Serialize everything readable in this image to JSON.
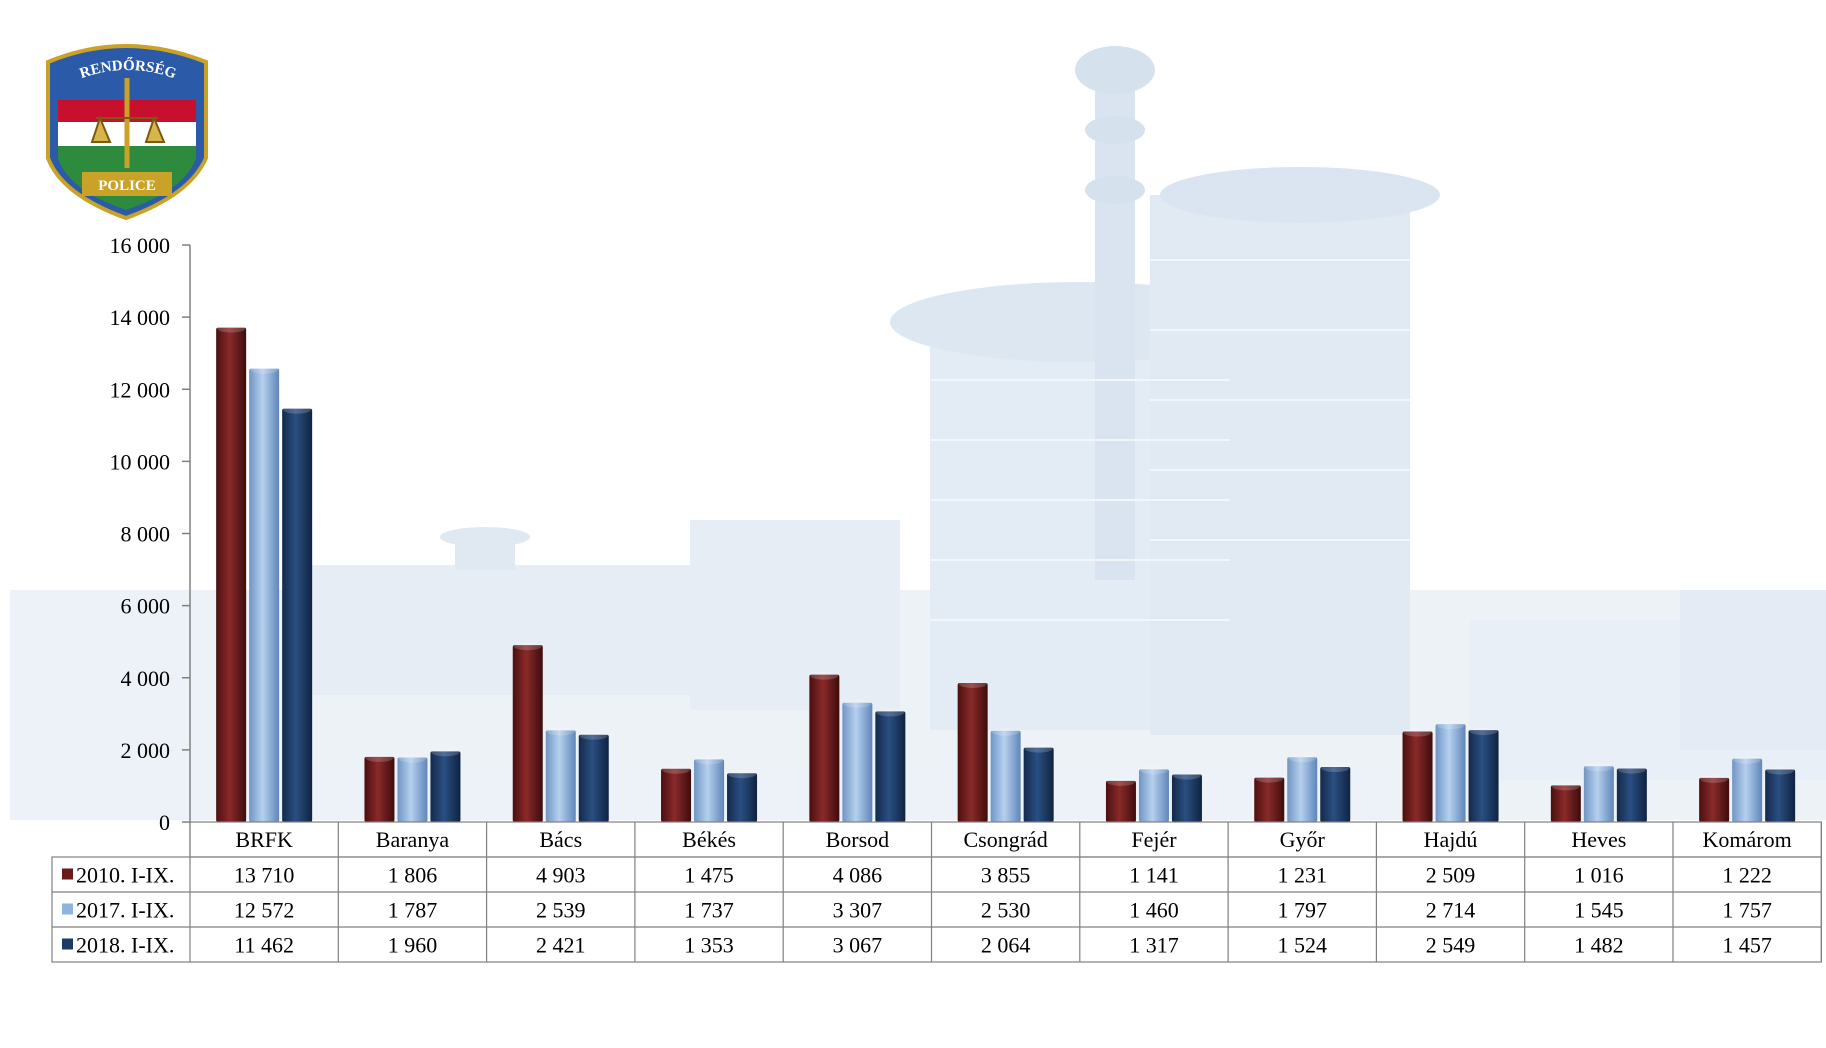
{
  "logo": {
    "top_text": "RENDŐRSÉG",
    "bottom_text": "POLICE"
  },
  "colors": {
    "series_2010": "#6b1a1a",
    "series_2017": "#8fb3de",
    "series_2018": "#1d3a66",
    "axis": "#808080",
    "background_building": "#c9d9ea"
  },
  "chart_data": {
    "type": "bar",
    "title": "",
    "xlabel": "",
    "ylabel": "",
    "ylim": [
      0,
      16000
    ],
    "yticks": [
      "0",
      "2 000",
      "4 000",
      "6 000",
      "8 000",
      "10 000",
      "12 000",
      "14 000",
      "16 000"
    ],
    "ytick_values": [
      0,
      2000,
      4000,
      6000,
      8000,
      10000,
      12000,
      14000,
      16000
    ],
    "grid": false,
    "legend": "data-table-left",
    "categories": [
      "BRFK",
      "Baranya",
      "Bács",
      "Békés",
      "Borsod",
      "Csongrád",
      "Fejér",
      "Győr",
      "Hajdú",
      "Heves",
      "Komárom"
    ],
    "series": [
      {
        "name": "2010. I-IX.",
        "values": [
          13710,
          1806,
          4903,
          1475,
          4086,
          3855,
          1141,
          1231,
          2509,
          1016,
          1222
        ],
        "labels": [
          "13 710",
          "1 806",
          "4 903",
          "1 475",
          "4 086",
          "3 855",
          "1 141",
          "1 231",
          "2 509",
          "1 016",
          "1 222"
        ]
      },
      {
        "name": "2017. I-IX.",
        "values": [
          12572,
          1787,
          2539,
          1737,
          3307,
          2530,
          1460,
          1797,
          2714,
          1545,
          1757
        ],
        "labels": [
          "12 572",
          "1 787",
          "2 539",
          "1 737",
          "3 307",
          "2 530",
          "1 460",
          "1 797",
          "2 714",
          "1 545",
          "1 757"
        ]
      },
      {
        "name": "2018. I-IX.",
        "values": [
          11462,
          1960,
          2421,
          1353,
          3067,
          2064,
          1317,
          1524,
          2549,
          1482,
          1457
        ],
        "labels": [
          "11 462",
          "1 960",
          "2 421",
          "1 353",
          "3 067",
          "2 064",
          "1 317",
          "1 524",
          "2 549",
          "1 482",
          "1 457"
        ]
      }
    ]
  }
}
